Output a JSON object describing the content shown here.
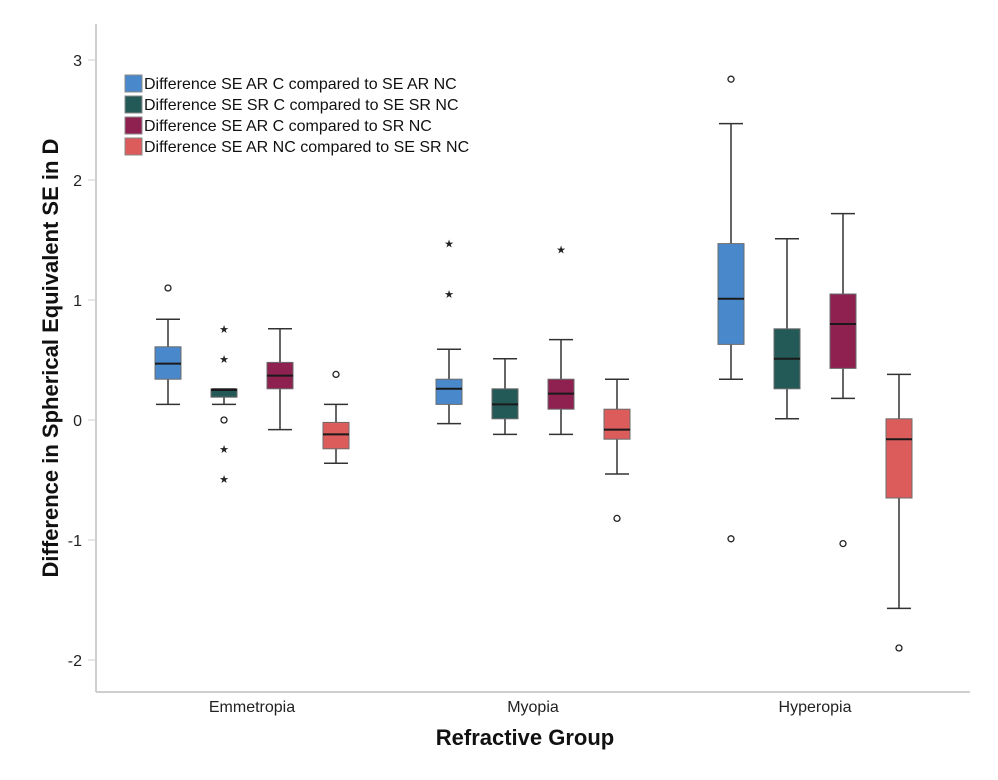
{
  "chart_data": {
    "type": "box",
    "title": "",
    "xlabel": "Refractive Group",
    "ylabel": "Difference in Spherical Equivalent SE in D",
    "ylim": [
      -2.25,
      3.3
    ],
    "yticks": [
      -2,
      -1,
      0,
      1,
      2,
      3
    ],
    "grid": false,
    "legend_position": "top-left",
    "categories": [
      "Emmetropia",
      "Myopia",
      "Hyperopia"
    ],
    "series": [
      {
        "name": "Difference SE AR C compared to SE AR NC",
        "color": "#4a88cc",
        "boxes": [
          {
            "whisker_low": 0.13,
            "q1": 0.34,
            "median": 0.47,
            "q3": 0.61,
            "whisker_high": 0.84,
            "outliers": [
              1.1
            ],
            "extremes": []
          },
          {
            "whisker_low": -0.03,
            "q1": 0.13,
            "median": 0.26,
            "q3": 0.34,
            "whisker_high": 0.59,
            "outliers": [],
            "extremes": [
              1.47,
              1.05
            ]
          },
          {
            "whisker_low": 0.34,
            "q1": 0.63,
            "median": 1.01,
            "q3": 1.47,
            "whisker_high": 2.47,
            "outliers": [
              2.84,
              -0.99
            ],
            "extremes": []
          }
        ]
      },
      {
        "name": "Difference SE SR C compared to SE SR NC",
        "color": "#235a57",
        "boxes": [
          {
            "whisker_low": 0.13,
            "q1": 0.19,
            "median": 0.25,
            "q3": 0.26,
            "whisker_high": 0.26,
            "outliers": [
              0.0
            ],
            "extremes": [
              0.76,
              0.51,
              -0.24,
              -0.49
            ]
          },
          {
            "whisker_low": -0.12,
            "q1": 0.01,
            "median": 0.13,
            "q3": 0.26,
            "whisker_high": 0.51,
            "outliers": [],
            "extremes": []
          },
          {
            "whisker_low": 0.01,
            "q1": 0.26,
            "median": 0.51,
            "q3": 0.76,
            "whisker_high": 1.51,
            "outliers": [],
            "extremes": []
          }
        ]
      },
      {
        "name": "Difference SE AR C compared to SR NC",
        "color": "#8e2150",
        "boxes": [
          {
            "whisker_low": -0.08,
            "q1": 0.26,
            "median": 0.37,
            "q3": 0.48,
            "whisker_high": 0.76,
            "outliers": [],
            "extremes": []
          },
          {
            "whisker_low": -0.12,
            "q1": 0.09,
            "median": 0.22,
            "q3": 0.34,
            "whisker_high": 0.67,
            "outliers": [],
            "extremes": [
              1.42
            ]
          },
          {
            "whisker_low": 0.18,
            "q1": 0.43,
            "median": 0.8,
            "q3": 1.05,
            "whisker_high": 1.72,
            "outliers": [
              -1.03
            ],
            "extremes": []
          }
        ]
      },
      {
        "name": "Difference SE AR NC compared to SE SR NC",
        "color": "#dc5c5c",
        "boxes": [
          {
            "whisker_low": -0.36,
            "q1": -0.24,
            "median": -0.12,
            "q3": -0.02,
            "whisker_high": 0.13,
            "outliers": [
              0.38
            ],
            "extremes": []
          },
          {
            "whisker_low": -0.45,
            "q1": -0.16,
            "median": -0.08,
            "q3": 0.09,
            "whisker_high": 0.34,
            "outliers": [
              -0.82
            ],
            "extremes": []
          },
          {
            "whisker_low": -1.57,
            "q1": -0.65,
            "median": -0.16,
            "q3": 0.01,
            "whisker_high": 0.38,
            "outliers": [
              -1.9
            ],
            "extremes": []
          }
        ]
      }
    ]
  }
}
